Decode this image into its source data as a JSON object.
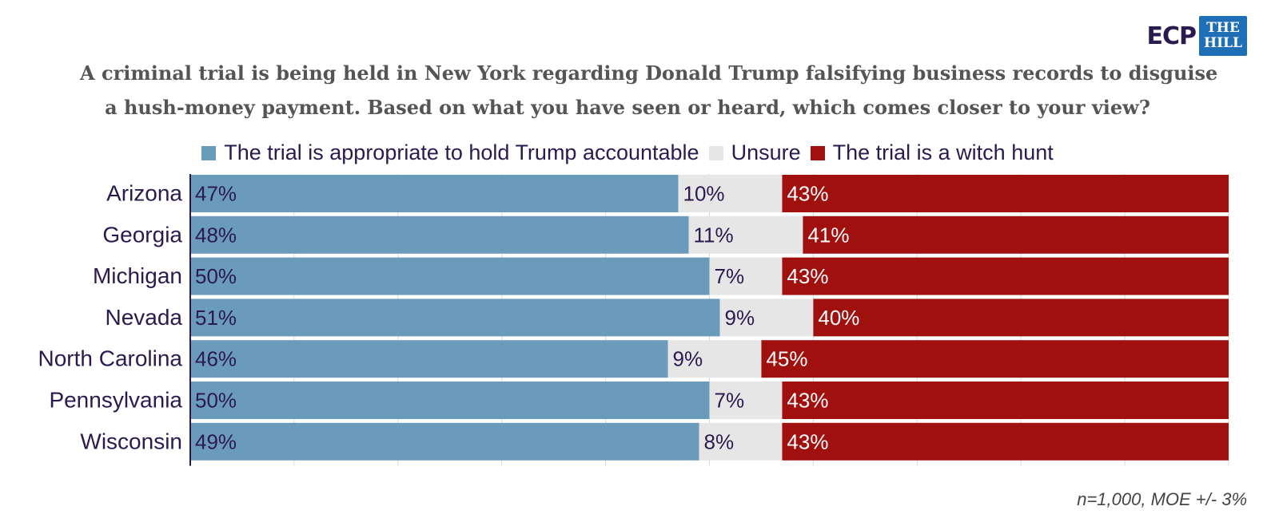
{
  "logo": {
    "ecp_text": "ECP",
    "hill_line1": "THE",
    "hill_line2": "HILL"
  },
  "title_lines": [
    "A criminal trial is being held in New York regarding Donald Trump falsifying business records to disguise",
    "a hush-money payment. Based on what you have seen or heard, which comes closer to your view?"
  ],
  "footnote": "n=1,000, MOE +/- 3%",
  "colors": {
    "accountable": "#6b9bbb",
    "unsure": "#e6e6e6",
    "witch_hunt": "#a0100f",
    "label_dark": "#2b1a4f"
  },
  "chart_data": {
    "type": "bar",
    "orientation": "horizontal",
    "stacked": true,
    "categories": [
      "Arizona",
      "Georgia",
      "Michigan",
      "Nevada",
      "North Carolina",
      "Pennsylvania",
      "Wisconsin"
    ],
    "series": [
      {
        "name": "The trial is appropriate to hold Trump accountable",
        "values": [
          47,
          48,
          50,
          51,
          46,
          50,
          49
        ],
        "labels": [
          "47%",
          "48%",
          "50%",
          "51%",
          "46%",
          "50%",
          "49%"
        ]
      },
      {
        "name": "Unsure",
        "values": [
          10,
          11,
          7,
          9,
          9,
          7,
          8
        ],
        "labels": [
          "10%",
          "11%",
          "7%",
          "9%",
          "9%",
          "7%",
          "8%"
        ]
      },
      {
        "name": "The trial is a witch hunt",
        "values": [
          43,
          41,
          43,
          40,
          45,
          43,
          43
        ],
        "labels": [
          "43%",
          "41%",
          "43%",
          "40%",
          "45%",
          "43%",
          "43%"
        ]
      }
    ],
    "xlim": [
      0,
      100
    ],
    "legend_position": "top",
    "grid": true
  }
}
